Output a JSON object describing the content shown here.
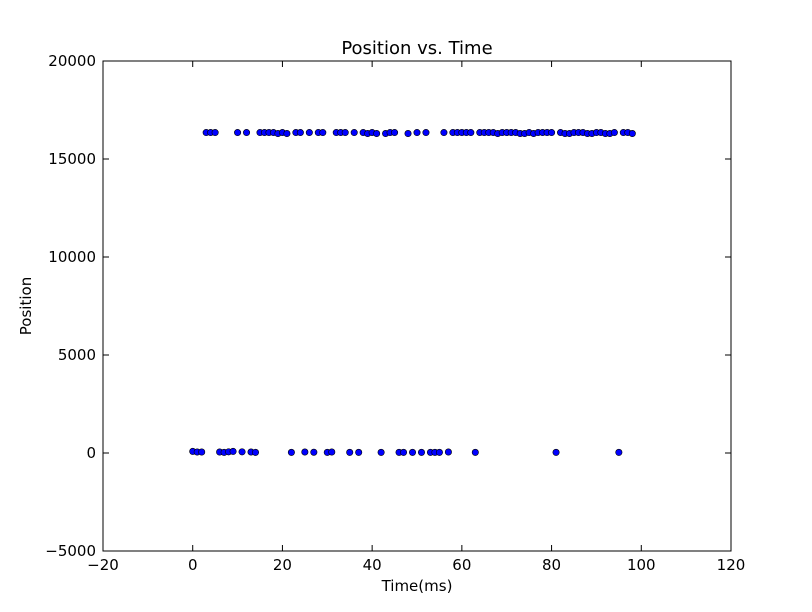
{
  "chart_data": {
    "type": "scatter",
    "title": "Position vs. Time",
    "xlabel": "Time(ms)",
    "ylabel": "Position",
    "xlim": [
      -20,
      120
    ],
    "ylim": [
      -5000,
      20000
    ],
    "xticks": [
      -20,
      0,
      20,
      40,
      60,
      80,
      100,
      120
    ],
    "yticks": [
      -5000,
      0,
      5000,
      10000,
      15000,
      20000
    ],
    "xtick_labels": [
      "−20",
      "0",
      "20",
      "40",
      "60",
      "80",
      "100",
      "120"
    ],
    "ytick_labels": [
      "−5000",
      "0",
      "5000",
      "10000",
      "15000",
      "20000"
    ],
    "grid": false,
    "legend": "none",
    "marker_color": "#0000ff",
    "marker_edge_color": "#000000",
    "series": [
      {
        "x": [
          3,
          4,
          5,
          10,
          12,
          15,
          16,
          17,
          18,
          19,
          20,
          21,
          23,
          24,
          26,
          28,
          29,
          32,
          33,
          34,
          36,
          38,
          39,
          40,
          41,
          43,
          44,
          45,
          48,
          50,
          52,
          56,
          58,
          59,
          60,
          61,
          62,
          64,
          65,
          66,
          67,
          68,
          69,
          70,
          71,
          72,
          73,
          74,
          75,
          76,
          77,
          78,
          79,
          80,
          82,
          83,
          84,
          85,
          86,
          87,
          88,
          89,
          90,
          91,
          92,
          93,
          94,
          96,
          97,
          98
        ],
        "y": [
          16350,
          16350,
          16350,
          16350,
          16350,
          16350,
          16350,
          16350,
          16350,
          16300,
          16350,
          16300,
          16350,
          16350,
          16350,
          16350,
          16350,
          16350,
          16350,
          16350,
          16350,
          16350,
          16300,
          16350,
          16300,
          16300,
          16350,
          16350,
          16300,
          16350,
          16350,
          16350,
          16350,
          16350,
          16350,
          16350,
          16350,
          16350,
          16350,
          16350,
          16350,
          16300,
          16350,
          16350,
          16350,
          16350,
          16300,
          16300,
          16350,
          16300,
          16350,
          16350,
          16350,
          16350,
          16350,
          16300,
          16300,
          16350,
          16350,
          16350,
          16300,
          16300,
          16350,
          16350,
          16300,
          16300,
          16350,
          16350,
          16350,
          16300
        ]
      },
      {
        "x": [
          0,
          1,
          2,
          6,
          7,
          8,
          9,
          11,
          13,
          14,
          22,
          25,
          27,
          30,
          31,
          35,
          37,
          42,
          46,
          47,
          49,
          51,
          53,
          54,
          55,
          57,
          63,
          81,
          95
        ],
        "y": [
          80,
          50,
          50,
          50,
          30,
          60,
          80,
          60,
          50,
          30,
          30,
          50,
          40,
          30,
          50,
          30,
          30,
          30,
          30,
          30,
          30,
          30,
          30,
          30,
          30,
          50,
          30,
          30,
          30
        ]
      }
    ]
  }
}
